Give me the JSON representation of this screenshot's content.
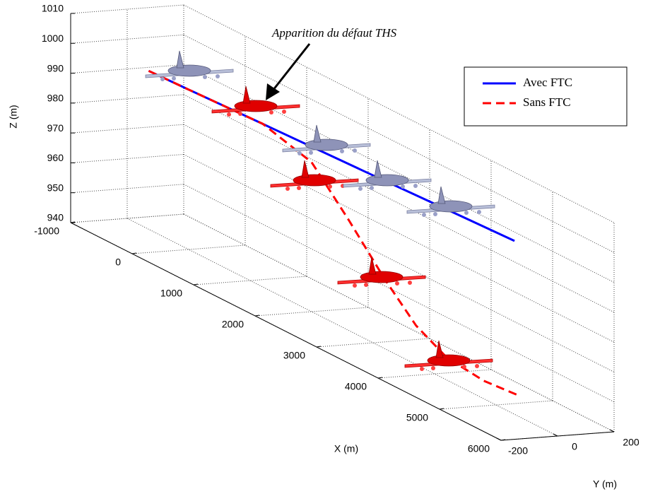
{
  "chart_data": {
    "type": "line3d",
    "annotation": "Apparition du défaut THS",
    "xlabel": "X (m)",
    "ylabel": "Y (m)",
    "zlabel": "Z (m)",
    "xlim": [
      -1000,
      6000
    ],
    "ylim": [
      -200,
      200
    ],
    "zlim": [
      940,
      1010
    ],
    "xticks": [
      -1000,
      0,
      1000,
      2000,
      3000,
      4000,
      5000,
      6000
    ],
    "yticks": [
      -200,
      0,
      200
    ],
    "zticks": [
      940,
      950,
      960,
      970,
      980,
      990,
      1000,
      1010
    ],
    "grid": true,
    "legend": "upper right",
    "series": [
      {
        "name": "Avec FTC",
        "color": "#0000ff",
        "style": "solid",
        "x": [
          -650,
          0,
          1000,
          2000,
          3000,
          4000,
          5300
        ],
        "y": [
          0,
          0,
          0,
          0,
          0,
          0,
          0
        ],
        "z": [
          993,
          993.5,
          994.4,
          995.2,
          996,
          996.9,
          998
        ]
      },
      {
        "name": "Sans FTC",
        "color": "#ff0000",
        "style": "dashed",
        "x": [
          -650,
          0,
          1000,
          1200,
          2000,
          2600,
          3200,
          3700,
          4200,
          4800,
          5380
        ],
        "y": [
          0,
          0,
          0,
          0,
          0,
          0,
          0,
          0,
          0,
          0,
          0
        ],
        "z": [
          993,
          993.5,
          994.4,
          994.6,
          990,
          977,
          963,
          953,
          947.5,
          946,
          947
        ]
      }
    ]
  }
}
